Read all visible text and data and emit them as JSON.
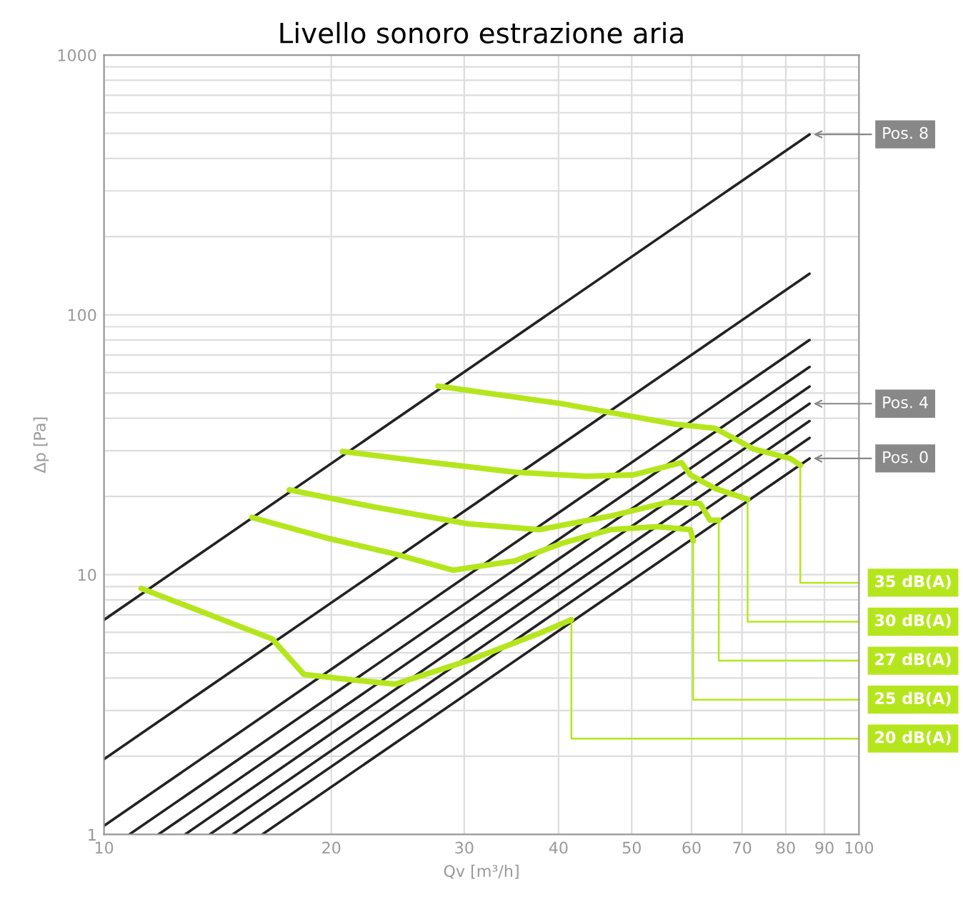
{
  "chart_data": {
    "type": "line",
    "title": "Livello sonoro estrazione aria",
    "xlabel": "Qv [m³/h]",
    "ylabel": "Δp [Pa]",
    "log": "xy",
    "grid": true,
    "legend": "right",
    "marker": "none",
    "line_style": "solid",
    "xlim": [
      10,
      100
    ],
    "xticks": [
      10,
      20,
      30,
      40,
      50,
      60,
      70,
      80,
      90,
      100
    ],
    "ylim": [
      1,
      1000
    ],
    "yticks": [
      1,
      {
        "value": 2,
        "label": null
      },
      {
        "value": 3,
        "label": null
      },
      {
        "value": 4,
        "label": null
      },
      {
        "value": 5,
        "label": null
      },
      {
        "value": 6,
        "label": null
      },
      {
        "value": 7,
        "label": null
      },
      {
        "value": 8,
        "label": null
      },
      {
        "value": 9,
        "label": null
      },
      10,
      {
        "value": 20,
        "label": null
      },
      {
        "value": 30,
        "label": null
      },
      {
        "value": 40,
        "label": null
      },
      {
        "value": 50,
        "label": null
      },
      {
        "value": 60,
        "label": null
      },
      {
        "value": 70,
        "label": null
      },
      {
        "value": 80,
        "label": null
      },
      {
        "value": 90,
        "label": null
      },
      100,
      {
        "value": 200,
        "label": null
      },
      {
        "value": 300,
        "label": null
      },
      {
        "value": 400,
        "label": null
      },
      {
        "value": 500,
        "label": null
      },
      {
        "value": 600,
        "label": null
      },
      {
        "value": 700,
        "label": null
      },
      {
        "value": 800,
        "label": null
      },
      {
        "value": 900,
        "label": null
      },
      1000
    ],
    "series": [
      {
        "name": "Pos. 8",
        "color": "#222222",
        "x": [
          10,
          86
        ],
        "values": [
          6.7,
          495
        ]
      },
      {
        "color": "#222222",
        "x": [
          10,
          86
        ],
        "values": [
          1.95,
          144
        ]
      },
      {
        "color": "#222222",
        "x": [
          10,
          86
        ],
        "values": [
          1.08,
          80
        ]
      },
      {
        "color": "#222222",
        "x": [
          10.8,
          86
        ],
        "values": [
          1,
          63
        ]
      },
      {
        "color": "#222222",
        "x": [
          11.8,
          86
        ],
        "values": [
          1,
          53
        ]
      },
      {
        "name": "Pos. 4",
        "color": "#222222",
        "x": [
          12.8,
          86
        ],
        "values": [
          1,
          45.5
        ]
      },
      {
        "color": "#222222",
        "x": [
          13.8,
          86
        ],
        "values": [
          1,
          39
        ]
      },
      {
        "color": "#222222",
        "x": [
          14.8,
          86
        ],
        "values": [
          1,
          33.6
        ]
      },
      {
        "name": "Pos. 0",
        "color": "#222222",
        "x": [
          16.2,
          86
        ],
        "values": [
          1,
          28
        ]
      },
      {
        "name": "35 dB(A)",
        "color": "#b5e61d",
        "x": [
          27.7,
          40.4,
          57.2,
          64.4,
          68.1,
          72.4,
          81.1,
          83.6
        ],
        "values": [
          53.2,
          45.5,
          37.9,
          36.6,
          33.6,
          30.5,
          28.0,
          26.4
        ]
      },
      {
        "name": "30 dB(A)",
        "color": "#b5e61d",
        "x": [
          20.7,
          26.1,
          35.0,
          43.5,
          50.2,
          58.2,
          59.8,
          64.4,
          71.2
        ],
        "values": [
          29.8,
          27.4,
          24.8,
          23.9,
          24.2,
          27.0,
          24.2,
          21.5,
          19.5
        ]
      },
      {
        "name": "27 dB(A)",
        "color": "#b5e61d",
        "x": [
          17.6,
          22.6,
          30.3,
          37.7,
          46.8,
          55.8,
          61.6,
          63.5,
          65.2
        ],
        "values": [
          21.2,
          18.3,
          15.7,
          14.9,
          16.8,
          19.0,
          18.8,
          16.2,
          16.2
        ]
      },
      {
        "name": "25 dB(A)",
        "color": "#b5e61d",
        "x": [
          15.7,
          19.6,
          24.3,
          29.0,
          35.0,
          40.4,
          46.8,
          54.1,
          59.8,
          60.3
        ],
        "values": [
          16.6,
          13.9,
          12.0,
          10.4,
          11.3,
          13.2,
          14.9,
          15.3,
          14.9,
          13.5
        ]
      },
      {
        "name": "20 dB(A)",
        "color": "#b5e61d",
        "x": [
          11.2,
          14.2,
          16.7,
          18.4,
          21.4,
          24.3,
          30.3,
          37.7,
          41.6
        ],
        "values": [
          8.86,
          6.79,
          5.66,
          4.13,
          3.93,
          3.79,
          4.66,
          5.94,
          6.71
        ]
      }
    ]
  }
}
